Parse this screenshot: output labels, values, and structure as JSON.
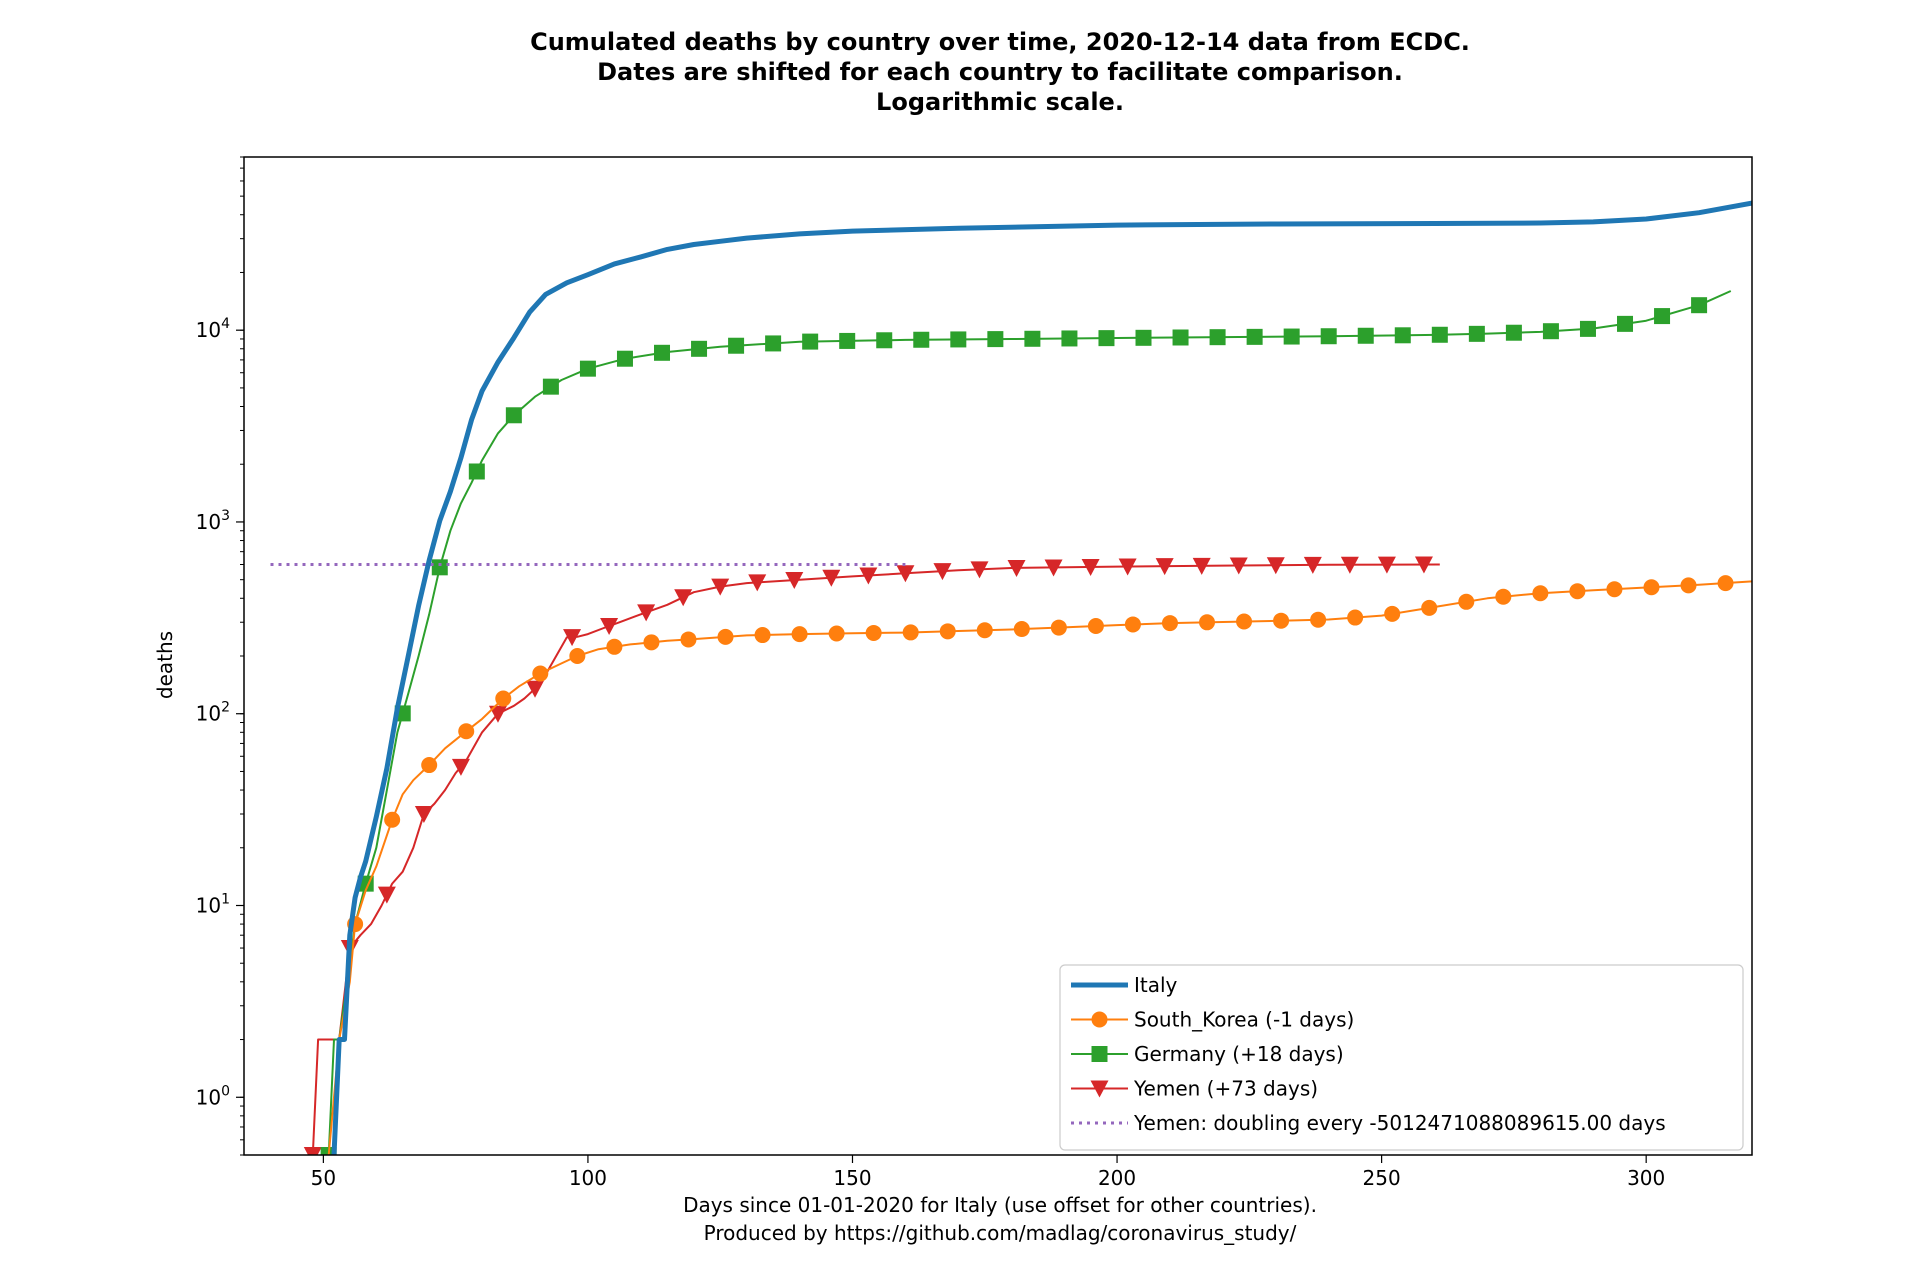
{
  "chart_data": {
    "type": "line",
    "title_lines": [
      "Cumulated deaths by country over time, 2020-12-14 data from ECDC.",
      "Dates are shifted for each country to facilitate comparison.",
      "Logarithmic scale."
    ],
    "xlabel_lines": [
      "Days since 01-01-2020 for Italy (use offset for other countries).",
      "Produced by https://github.com/madlag/coronavirus_study/"
    ],
    "ylabel": "deaths",
    "y_scale": "log",
    "xlim": [
      35,
      320
    ],
    "ylim": [
      0.5,
      80000
    ],
    "x_ticks": [
      50,
      100,
      150,
      200,
      250,
      300
    ],
    "x_tick_labels": [
      "50",
      "100",
      "150",
      "200",
      "250",
      "300"
    ],
    "y_ticks": [
      1,
      10,
      100,
      1000,
      10000
    ],
    "y_tick_labels": [
      {
        "base": "10",
        "exp": "0"
      },
      {
        "base": "10",
        "exp": "1"
      },
      {
        "base": "10",
        "exp": "2"
      },
      {
        "base": "10",
        "exp": "3"
      },
      {
        "base": "10",
        "exp": "4"
      }
    ],
    "legend_position": "lower right",
    "series": [
      {
        "name": "Italy",
        "color": "#1f77b4",
        "style": "line-thick",
        "x": [
          52,
          53,
          54,
          55,
          56,
          57,
          58,
          60,
          62,
          64,
          66,
          68,
          70,
          72,
          74,
          76,
          78,
          80,
          83,
          86,
          89,
          92,
          96,
          100,
          105,
          110,
          115,
          120,
          125,
          130,
          140,
          150,
          170,
          200,
          230,
          260,
          280,
          290,
          300,
          310,
          320
        ],
        "y": [
          0.5,
          2,
          2,
          7,
          11,
          14,
          17,
          29,
          52,
          107,
          197,
          366,
          631,
          1016,
          1441,
          2158,
          3405,
          4825,
          6820,
          9134,
          12428,
          15362,
          17669,
          19468,
          22170,
          24114,
          26384,
          27967,
          29079,
          30201,
          31763,
          32877,
          34000,
          35300,
          35800,
          36000,
          36200,
          36700,
          38000,
          41000,
          46000
        ]
      },
      {
        "name": "South_Korea (-1 days)",
        "color": "#ff7f0e",
        "style": "line-marker-circle",
        "x": [
          51,
          52,
          53,
          55,
          56,
          58,
          60,
          63,
          65,
          67,
          70,
          73,
          77,
          80,
          84,
          87,
          91,
          95,
          98,
          102,
          108,
          115,
          120,
          130,
          140,
          150,
          160,
          170,
          180,
          190,
          200,
          210,
          220,
          230,
          240,
          250,
          260,
          270,
          280,
          290,
          300,
          310,
          320
        ],
        "y": [
          0.5,
          1,
          2,
          4,
          8,
          12,
          16,
          28,
          38,
          45,
          54,
          66,
          81,
          94,
          120,
          139,
          162,
          183,
          200,
          217,
          230,
          240,
          245,
          256,
          260,
          263,
          265,
          270,
          275,
          282,
          290,
          297,
          301,
          305,
          310,
          325,
          360,
          400,
          425,
          440,
          455,
          470,
          490
        ]
      },
      {
        "name": "Germany (+18 days)",
        "color": "#2ca02c",
        "style": "line-marker-square",
        "x": [
          51,
          52,
          53,
          55,
          56,
          58,
          60,
          62,
          64,
          66,
          68,
          70,
          72,
          74,
          76,
          78,
          80,
          83,
          86,
          90,
          95,
          100,
          107,
          115,
          125,
          140,
          160,
          180,
          200,
          220,
          240,
          260,
          270,
          280,
          290,
          300,
          310,
          316
        ],
        "y": [
          0.5,
          2,
          2,
          5,
          8,
          13,
          20,
          40,
          80,
          126,
          200,
          330,
          580,
          900,
          1250,
          1600,
          2100,
          2900,
          3600,
          4500,
          5500,
          6300,
          7100,
          7700,
          8200,
          8700,
          8900,
          9000,
          9100,
          9200,
          9300,
          9450,
          9600,
          9800,
          10200,
          11200,
          13500,
          16000
        ]
      },
      {
        "name": "Yemen (+73 days)",
        "color": "#d62728",
        "style": "line-marker-triangle-down",
        "x": [
          48,
          49,
          50,
          52,
          53,
          55,
          57,
          59,
          61,
          63,
          65,
          67,
          69,
          71,
          73,
          75,
          77,
          80,
          83,
          86,
          88,
          90,
          92,
          94,
          96,
          98,
          100,
          103,
          106,
          110,
          115,
          120,
          125,
          130,
          140,
          150,
          160,
          170,
          180,
          200,
          220,
          240,
          261
        ],
        "y": [
          0.5,
          2,
          2,
          2,
          2,
          6,
          7,
          8,
          10,
          13,
          15,
          20,
          30,
          34,
          40,
          49,
          57,
          80,
          100,
          110,
          120,
          135,
          160,
          200,
          250,
          252,
          260,
          280,
          300,
          330,
          370,
          430,
          460,
          480,
          500,
          520,
          540,
          560,
          575,
          585,
          592,
          598,
          600
        ]
      },
      {
        "name": "Yemen: doubling every -5012471088089615.00 days",
        "color": "#9467bd",
        "style": "dotted",
        "x": [
          40,
          160
        ],
        "y": [
          600,
          600
        ]
      }
    ],
    "marker_x": {
      "South_Korea (-1 days)": [
        56,
        63,
        70,
        77,
        84,
        91,
        98,
        105,
        112,
        119,
        126,
        133,
        140,
        147,
        154,
        161,
        168,
        175,
        182,
        189,
        196,
        203,
        210,
        217,
        224,
        231,
        238,
        245,
        252,
        259,
        266,
        273,
        280,
        287,
        294,
        301,
        308,
        315
      ],
      "Germany (+18 days)": [
        51,
        58,
        65,
        72,
        79,
        86,
        93,
        100,
        107,
        114,
        121,
        128,
        135,
        142,
        149,
        156,
        163,
        170,
        177,
        184,
        191,
        198,
        205,
        212,
        219,
        226,
        233,
        240,
        247,
        254,
        261,
        268,
        275,
        282,
        289,
        296,
        303,
        310
      ],
      "Yemen (+73 days)": [
        48,
        55,
        62,
        69,
        76,
        83,
        90,
        97,
        104,
        111,
        118,
        125,
        132,
        139,
        146,
        153,
        160,
        167,
        174,
        181,
        188,
        195,
        202,
        209,
        216,
        223,
        230,
        237,
        244,
        251,
        258
      ]
    }
  }
}
